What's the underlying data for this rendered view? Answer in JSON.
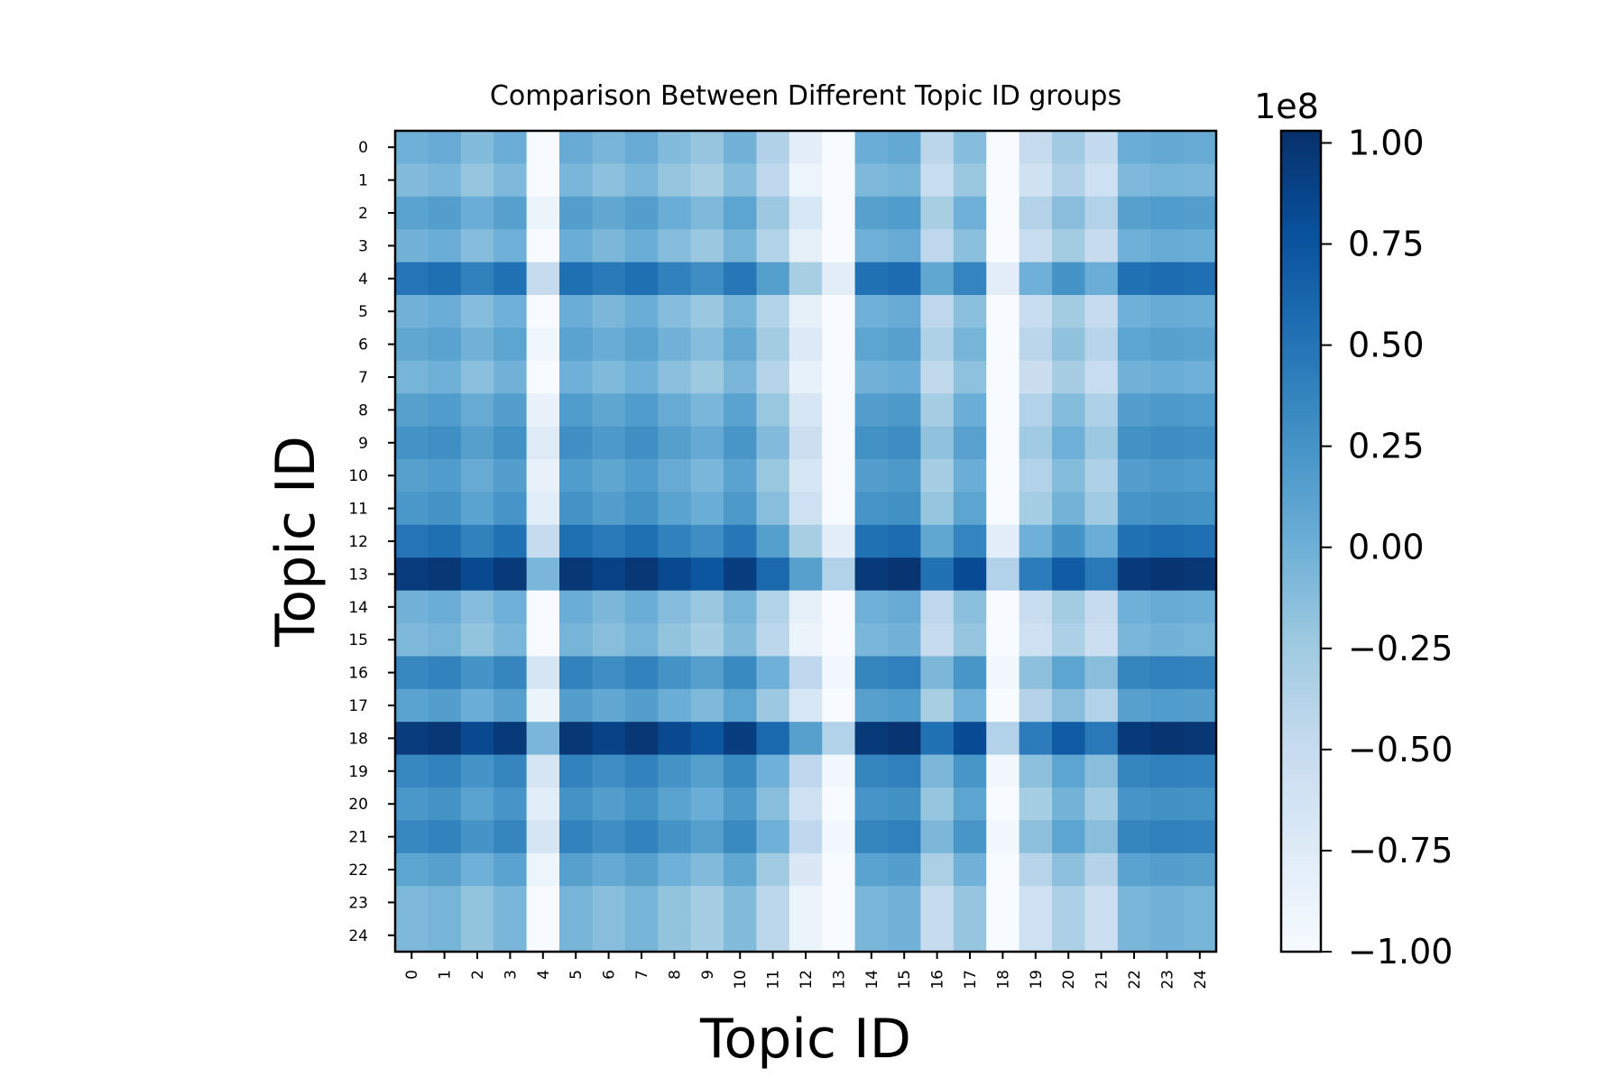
{
  "chart_data": {
    "type": "heatmap",
    "title": "Comparison Between Different Topic ID groups",
    "xlabel": "Topic ID",
    "ylabel": "Topic ID",
    "x_categories": [
      "0",
      "1",
      "2",
      "3",
      "4",
      "5",
      "6",
      "7",
      "8",
      "9",
      "10",
      "11",
      "12",
      "13",
      "14",
      "15",
      "16",
      "17",
      "18",
      "19",
      "20",
      "21",
      "22",
      "23",
      "24"
    ],
    "y_categories": [
      "0",
      "1",
      "2",
      "3",
      "4",
      "5",
      "6",
      "7",
      "8",
      "9",
      "10",
      "11",
      "12",
      "13",
      "14",
      "15",
      "16",
      "17",
      "18",
      "19",
      "20",
      "21",
      "22",
      "23",
      "24"
    ],
    "row_effect": [
      0.0,
      -0.1,
      0.12,
      -0.02,
      0.5,
      -0.02,
      0.08,
      -0.04,
      0.14,
      0.25,
      0.14,
      0.22,
      0.5,
      0.94,
      -0.02,
      -0.08,
      0.35,
      0.12,
      0.94,
      0.35,
      0.22,
      0.35,
      0.1,
      -0.08,
      -0.08
    ],
    "col_effect": [
      0.0,
      0.04,
      -0.1,
      0.02,
      -1.0,
      0.04,
      -0.05,
      0.04,
      -0.1,
      -0.2,
      -0.02,
      -0.35,
      -0.8,
      -1.3,
      0.02,
      0.06,
      -0.42,
      -0.12,
      -1.3,
      -0.5,
      -0.25,
      -0.48,
      0.02,
      0.06,
      0.04
    ],
    "value_min": -1.0,
    "value_max": 1.03,
    "colorbar": {
      "exponent_label": "1e8",
      "ticks": [
        1.0,
        0.75,
        0.5,
        0.25,
        0.0,
        -0.25,
        -0.5,
        -0.75,
        -1.0
      ],
      "tick_labels": [
        "1.00",
        "0.75",
        "0.50",
        "0.25",
        "0.00",
        "−0.25",
        "−0.50",
        "−0.75",
        "−1.00"
      ]
    },
    "colormap": [
      "#f7fbff",
      "#deebf7",
      "#c6dbef",
      "#9ecae1",
      "#6baed6",
      "#4292c6",
      "#2171b5",
      "#08519c",
      "#08306b"
    ],
    "grid": false
  }
}
